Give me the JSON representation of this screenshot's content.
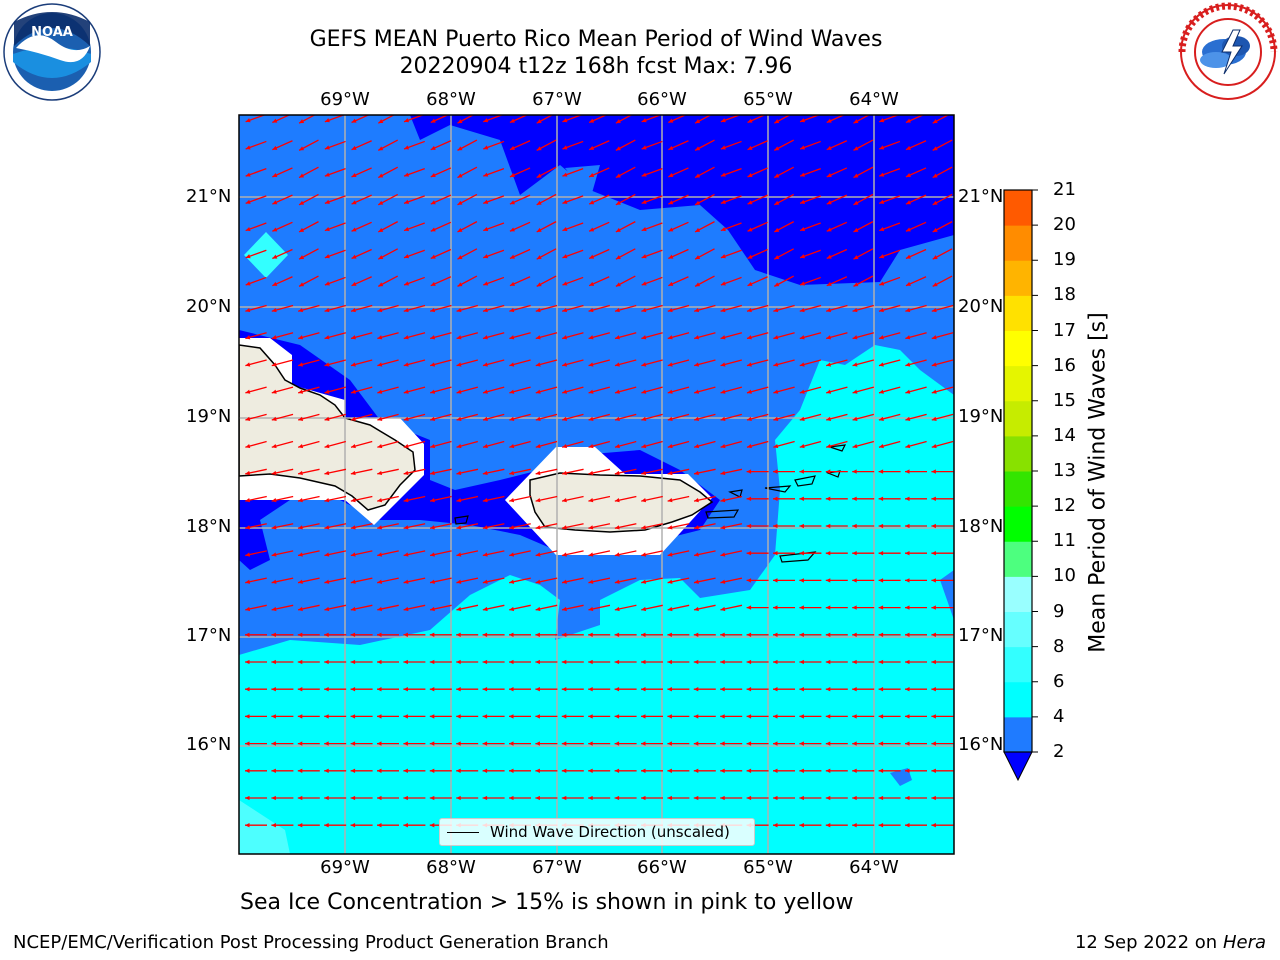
{
  "header": {
    "title_line1": "GEFS MEAN Puerto Rico Mean Period of Wind Waves",
    "title_line2": "20220904 t12z 168h fcst   Max: 7.96"
  },
  "map": {
    "region": "Puerto Rico",
    "lon_labels": [
      "69°W",
      "68°W",
      "67°W",
      "66°W",
      "65°W",
      "64°W"
    ],
    "lat_labels": [
      "21°N",
      "20°N",
      "19°N",
      "18°N",
      "17°N",
      "16°N"
    ],
    "field_colors": {
      "deep": "#0000ff",
      "mid": "#1e7cff",
      "light": "#00ffff",
      "land": "#eeece0",
      "arrow": "#ff0000"
    }
  },
  "colorbar": {
    "label": "Mean Period of Wind Waves [s]",
    "ticks": [
      "2",
      "4",
      "6",
      "8",
      "9",
      "10",
      "11",
      "12",
      "13",
      "14",
      "15",
      "16",
      "17",
      "18",
      "19",
      "20",
      "21"
    ],
    "colors": [
      "#1f7bff",
      "#00ffff",
      "#33ffff",
      "#66ffff",
      "#99ffff",
      "#4dff7f",
      "#00ff00",
      "#33e500",
      "#88e100",
      "#c6ec00",
      "#e5f500",
      "#ffff00",
      "#ffe100",
      "#ffb400",
      "#ff8c00",
      "#ff5a00",
      "#ff2d00",
      "#ff0000"
    ],
    "extend_min_color": "#0000ff"
  },
  "legend": {
    "text": "Wind Wave Direction (unscaled)"
  },
  "caption": "Sea Ice Concentration > 15% is shown in pink to yellow",
  "footer": {
    "left": "NCEP/EMC/Verification Post Processing Product Generation Branch",
    "right_prefix": "12 Sep 2022 on",
    "right_host": "Hera"
  },
  "logos": {
    "noaa_text": "NOAA",
    "nws_text": "NATIONAL WEATHER SERVICE"
  }
}
